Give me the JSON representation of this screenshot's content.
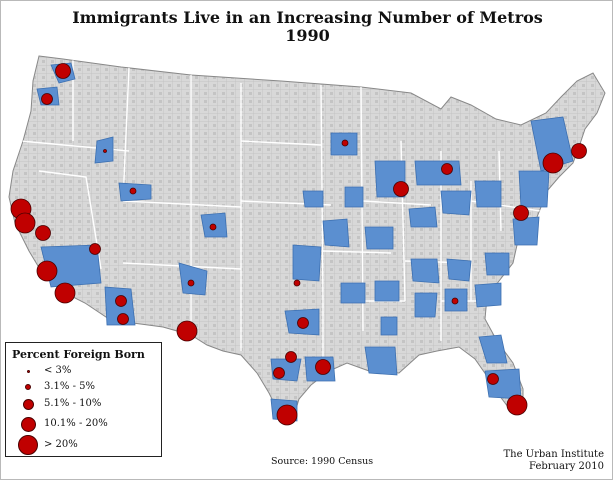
{
  "map": {
    "title_line1": "Immigrants Live in an Increasing Number of Metros",
    "title_line2": "1990",
    "source": "Source: 1990 Census",
    "credit_org": "The Urban Institute",
    "credit_date": "February 2010",
    "colors": {
      "land": "#d8d8d8",
      "land_shade": "#bdbdbd",
      "county_line": "#a8a8a8",
      "state_line": "#ffffff",
      "metro_fill": "#5b8fd0",
      "metro_stroke": "#3c6fb0",
      "dot_fill": "#c00000",
      "dot_stroke": "#4a0000"
    }
  },
  "legend": {
    "title": "Percent Foreign Born",
    "items": [
      {
        "label": "< 3%",
        "size_class": 1
      },
      {
        "label": "3.1% - 5%",
        "size_class": 2
      },
      {
        "label": "5.1% - 10%",
        "size_class": 3
      },
      {
        "label": "10.1% - 20%",
        "size_class": 4
      },
      {
        "label": "> 20%",
        "size_class": 5
      }
    ]
  },
  "metros": [
    {
      "region": "seattle",
      "pct_class": 4
    },
    {
      "region": "portland",
      "pct_class": 3
    },
    {
      "region": "boise",
      "pct_class": 1
    },
    {
      "region": "salt-lake",
      "pct_class": 2
    },
    {
      "region": "denver",
      "pct_class": 2
    },
    {
      "region": "sacramento",
      "pct_class": 5
    },
    {
      "region": "sf-bay",
      "pct_class": 5
    },
    {
      "region": "fresno",
      "pct_class": 4
    },
    {
      "region": "los-angeles",
      "pct_class": 5
    },
    {
      "region": "san-diego",
      "pct_class": 5
    },
    {
      "region": "las-vegas",
      "pct_class": 3
    },
    {
      "region": "phoenix",
      "pct_class": 3
    },
    {
      "region": "tucson",
      "pct_class": 3
    },
    {
      "region": "el-paso",
      "pct_class": 5
    },
    {
      "region": "albuquerque",
      "pct_class": 2
    },
    {
      "region": "oklahoma-city",
      "pct_class": 2
    },
    {
      "region": "dallas",
      "pct_class": 3
    },
    {
      "region": "austin",
      "pct_class": 3
    },
    {
      "region": "houston",
      "pct_class": 4
    },
    {
      "region": "san-antonio",
      "pct_class": 3
    },
    {
      "region": "rio-grande",
      "pct_class": 5
    },
    {
      "region": "minneapolis",
      "pct_class": 2
    },
    {
      "region": "chicago",
      "pct_class": 4
    },
    {
      "region": "detroit",
      "pct_class": 3
    },
    {
      "region": "new-york",
      "pct_class": 5
    },
    {
      "region": "boston",
      "pct_class": 4
    },
    {
      "region": "washington",
      "pct_class": 4
    },
    {
      "region": "miami",
      "pct_class": 5
    },
    {
      "region": "tampa",
      "pct_class": 3
    },
    {
      "region": "atlanta",
      "pct_class": 2
    }
  ]
}
